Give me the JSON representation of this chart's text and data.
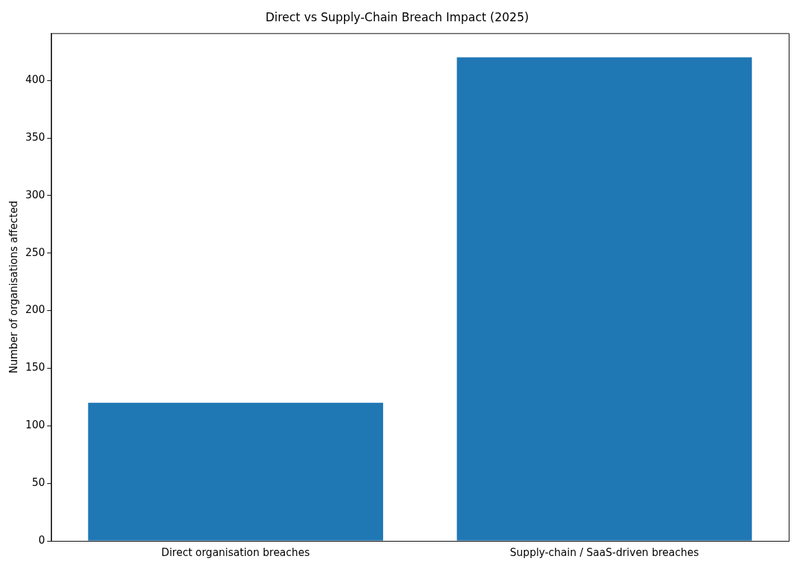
{
  "chart_data": {
    "type": "bar",
    "title": "Direct vs Supply-Chain Breach Impact (2025)",
    "ylabel": "Number of organisations affected",
    "categories": [
      "Direct organisation breaches",
      "Supply-chain / SaaS-driven breaches"
    ],
    "values": [
      120,
      420
    ],
    "color": "#1f77b4",
    "ylim": [
      0,
      441
    ],
    "yticks": [
      0,
      50,
      100,
      150,
      200,
      250,
      300,
      350,
      400
    ],
    "grid": false,
    "legend": false
  }
}
